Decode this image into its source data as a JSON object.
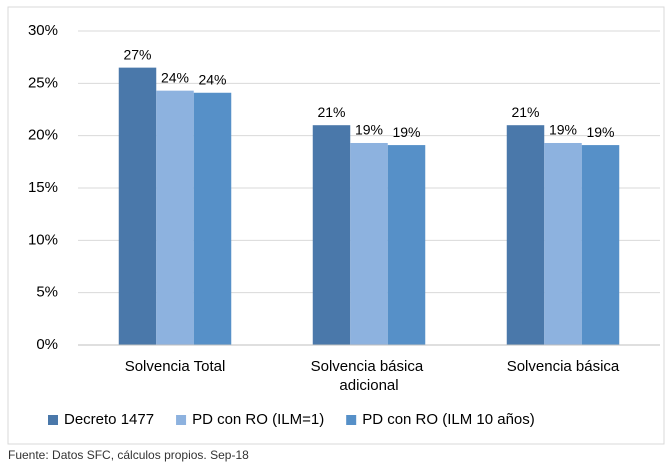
{
  "chart_data": {
    "type": "bar",
    "categories": [
      "Solvencia Total",
      "Solvencia básica adicional",
      "Solvencia básica"
    ],
    "series": [
      {
        "name": "Decreto 1477",
        "color": "#4a78aa",
        "values": [
          26.5,
          21.0,
          21.0
        ],
        "value_labels": [
          "27%",
          "21%",
          "21%"
        ]
      },
      {
        "name": "PD con RO (ILM=1)",
        "color": "#8db2df",
        "values": [
          24.3,
          19.3,
          19.3
        ],
        "value_labels": [
          "24%",
          "19%",
          "19%"
        ]
      },
      {
        "name": "PD con RO (ILM 10 años)",
        "color": "#5690c8",
        "values": [
          24.1,
          19.1,
          19.1
        ],
        "value_labels": [
          "24%",
          "19%",
          "19%"
        ]
      }
    ],
    "ylim": [
      0,
      30
    ],
    "yticks": [
      {
        "value": 0,
        "label": "0%"
      },
      {
        "value": 5,
        "label": "5%"
      },
      {
        "value": 10,
        "label": "10%"
      },
      {
        "value": 15,
        "label": "15%"
      },
      {
        "value": 20,
        "label": "20%"
      },
      {
        "value": 25,
        "label": "25%"
      },
      {
        "value": 30,
        "label": "30%"
      }
    ],
    "grid": true,
    "legend": "bottom",
    "source": "Fuente: Datos SFC, cálculos propios. Sep-18"
  }
}
